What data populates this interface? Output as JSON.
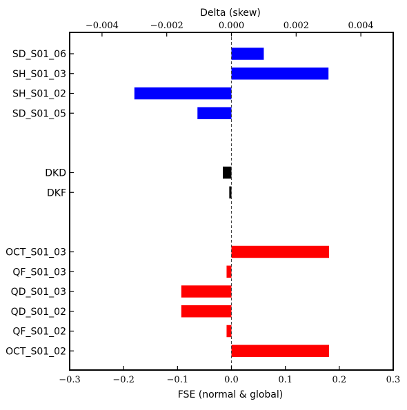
{
  "chart_data": {
    "type": "bar",
    "orientation": "horizontal",
    "xlabel": "FSE (normal & global)",
    "top_xlabel": "Delta (skew)",
    "xlim": [
      -0.3,
      0.3
    ],
    "top_xlim": [
      -0.005,
      0.005
    ],
    "x_ticks": [
      "−0.3",
      "−0.2",
      "−0.1",
      "0.0",
      "0.1",
      "0.2",
      "0.3"
    ],
    "x_tick_values": [
      -0.3,
      -0.2,
      -0.1,
      0.0,
      0.1,
      0.2,
      0.3
    ],
    "top_ticks": [
      "−0.004",
      "−0.002",
      "0.000",
      "0.002",
      "0.004"
    ],
    "top_tick_values": [
      -0.004,
      -0.002,
      0.0,
      0.002,
      0.004
    ],
    "grid": false,
    "zero_line": "dashed",
    "colors": {
      "skew": "#0000ff",
      "dk": "#000000",
      "normal": "#ff0000"
    },
    "bars": [
      {
        "label": "SD_S01_06",
        "group": "skew",
        "value": 0.001,
        "scale": "top"
      },
      {
        "label": "SH_S01_03",
        "group": "skew",
        "value": 0.003,
        "scale": "top"
      },
      {
        "label": "SH_S01_02",
        "group": "skew",
        "value": -0.003,
        "scale": "top"
      },
      {
        "label": "SD_S01_05",
        "group": "skew",
        "value": -0.00105,
        "scale": "top"
      },
      {
        "label": "",
        "group": "gap"
      },
      {
        "label": "",
        "group": "gap"
      },
      {
        "label": "DKD",
        "group": "dk",
        "value": -0.016,
        "scale": "bottom"
      },
      {
        "label": "DKF",
        "group": "dk",
        "value": -0.004,
        "scale": "bottom"
      },
      {
        "label": "",
        "group": "gap"
      },
      {
        "label": "",
        "group": "gap"
      },
      {
        "label": "OCT_S01_03",
        "group": "normal",
        "value": 0.181,
        "scale": "bottom"
      },
      {
        "label": "QF_S01_03",
        "group": "normal",
        "value": -0.009,
        "scale": "bottom"
      },
      {
        "label": "QD_S01_03",
        "group": "normal",
        "value": -0.093,
        "scale": "bottom"
      },
      {
        "label": "QD_S01_02",
        "group": "normal",
        "value": -0.093,
        "scale": "bottom"
      },
      {
        "label": "QF_S01_02",
        "group": "normal",
        "value": -0.009,
        "scale": "bottom"
      },
      {
        "label": "OCT_S01_02",
        "group": "normal",
        "value": 0.181,
        "scale": "bottom"
      }
    ]
  }
}
